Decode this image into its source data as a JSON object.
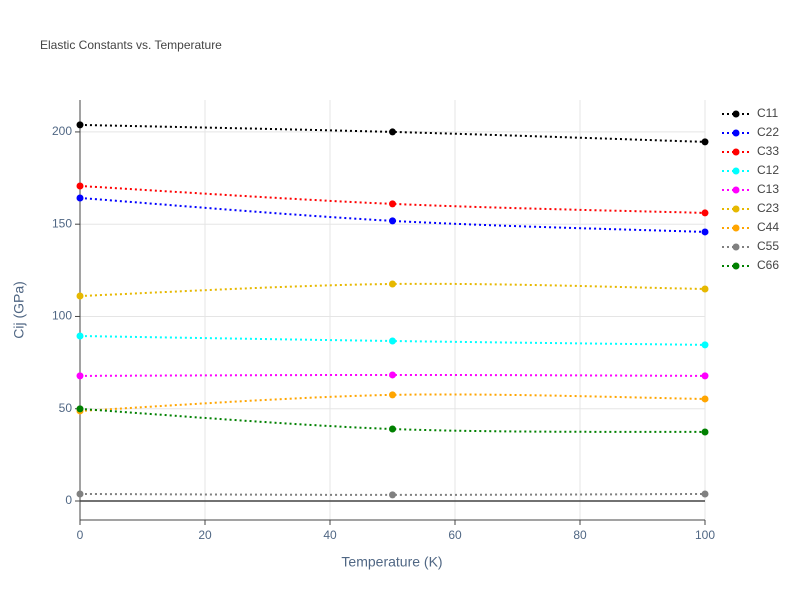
{
  "chart_data": {
    "type": "line",
    "title": "Elastic Constants vs. Temperature",
    "x_label": "Temperature (K)",
    "y_label": "Cij (GPa)",
    "x": [
      0,
      50,
      100
    ],
    "series": [
      {
        "name": "C11",
        "color": "#000000",
        "values": [
          203.8,
          200,
          194.6
        ]
      },
      {
        "name": "C22",
        "color": "#0000ff",
        "values": [
          164.2,
          151.8,
          145.8
        ]
      },
      {
        "name": "C33",
        "color": "#ff0000",
        "values": [
          170.7,
          161,
          156.1
        ]
      },
      {
        "name": "C12",
        "color": "#00ffff",
        "values": [
          89.4,
          86.7,
          84.6
        ]
      },
      {
        "name": "C13",
        "color": "#ff00ff",
        "values": [
          67.8,
          68.3,
          67.8
        ]
      },
      {
        "name": "C23",
        "color": "#e6b800",
        "values": [
          111.1,
          117.6,
          114.9
        ]
      },
      {
        "name": "C44",
        "color": "#ffa500",
        "values": [
          48.8,
          57.5,
          55.3
        ]
      },
      {
        "name": "C55",
        "color": "#808080",
        "values": [
          3.8,
          3.3,
          3.8
        ]
      },
      {
        "name": "C66",
        "color": "#008000",
        "values": [
          49.9,
          39,
          37.4
        ]
      }
    ],
    "xlim": [
      0,
      100
    ],
    "xticks": [
      0,
      20,
      40,
      60,
      80,
      100
    ],
    "ylim": [
      -10.3,
      217.3
    ],
    "yticks": [
      0,
      50,
      100,
      150,
      200
    ],
    "grid": true,
    "legend": "right"
  }
}
